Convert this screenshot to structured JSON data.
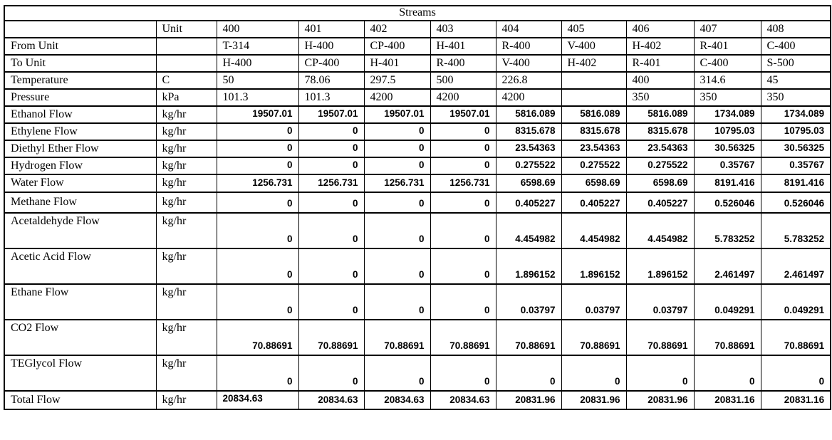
{
  "title": "Streams",
  "table": {
    "unit_header": "Unit",
    "streams": [
      "400",
      "401",
      "402",
      "403",
      "404",
      "405",
      "406",
      "407",
      "408"
    ],
    "rows": [
      {
        "label": "From Unit",
        "unit": "",
        "values": [
          "T-314",
          "H-400",
          "CP-400",
          "H-401",
          "R-400",
          "V-400",
          "H-402",
          "R-401",
          "C-400"
        ]
      },
      {
        "label": "To Unit",
        "unit": "",
        "values": [
          "H-400",
          "CP-400",
          "H-401",
          "R-400",
          "V-400",
          "H-402",
          "R-401",
          "C-400",
          "S-500"
        ]
      },
      {
        "label": "Temperature",
        "unit": "C",
        "values": [
          "50",
          "78.06",
          "297.5",
          "500",
          "226.8",
          "",
          "400",
          "314.6",
          "45"
        ]
      },
      {
        "label": "Pressure",
        "unit": "kPa",
        "values": [
          "101.3",
          "101.3",
          "4200",
          "4200",
          "4200",
          "",
          "350",
          "350",
          "350"
        ]
      },
      {
        "label": "Ethanol Flow",
        "unit": "kg/hr",
        "values": [
          "19507.01",
          "19507.01",
          "19507.01",
          "19507.01",
          "5816.089",
          "5816.089",
          "5816.089",
          "1734.089",
          "1734.089"
        ]
      },
      {
        "label": "Ethylene Flow",
        "unit": "kg/hr",
        "values": [
          "0",
          "0",
          "0",
          "0",
          "8315.678",
          "8315.678",
          "8315.678",
          "10795.03",
          "10795.03"
        ]
      },
      {
        "label": "Diethyl Ether Flow",
        "unit": "kg/hr",
        "values": [
          "0",
          "0",
          "0",
          "0",
          "23.54363",
          "23.54363",
          "23.54363",
          "30.56325",
          "30.56325"
        ]
      },
      {
        "label": "Hydrogen Flow",
        "unit": "kg/hr",
        "values": [
          "0",
          "0",
          "0",
          "0",
          "0.275522",
          "0.275522",
          "0.275522",
          "0.35767",
          "0.35767"
        ]
      },
      {
        "label": "Water Flow",
        "unit": "kg/hr",
        "values": [
          "1256.731",
          "1256.731",
          "1256.731",
          "1256.731",
          "6598.69",
          "6598.69",
          "6598.69",
          "8191.416",
          "8191.416"
        ]
      },
      {
        "label": "Methane Flow",
        "unit": "kg/hr",
        "values": [
          "0",
          "0",
          "0",
          "0",
          "0.405227",
          "0.405227",
          "0.405227",
          "0.526046",
          "0.526046"
        ]
      },
      {
        "label": "Acetaldehyde Flow",
        "unit": "kg/hr",
        "values": [
          "0",
          "0",
          "0",
          "0",
          "4.454982",
          "4.454982",
          "4.454982",
          "5.783252",
          "5.783252"
        ]
      },
      {
        "label": "Acetic Acid Flow",
        "unit": "kg/hr",
        "values": [
          "0",
          "0",
          "0",
          "0",
          "1.896152",
          "1.896152",
          "1.896152",
          "2.461497",
          "2.461497"
        ]
      },
      {
        "label": "Ethane Flow",
        "unit": "kg/hr",
        "values": [
          "0",
          "0",
          "0",
          "0",
          "0.03797",
          "0.03797",
          "0.03797",
          "0.049291",
          "0.049291"
        ]
      },
      {
        "label": "CO2 Flow",
        "unit": "kg/hr",
        "values": [
          "70.88691",
          "70.88691",
          "70.88691",
          "70.88691",
          "70.88691",
          "70.88691",
          "70.88691",
          "70.88691",
          "70.88691"
        ]
      },
      {
        "label": "TEGlycol Flow",
        "unit": "kg/hr",
        "values": [
          "0",
          "0",
          "0",
          "0",
          "0",
          "0",
          "0",
          "0",
          "0"
        ]
      },
      {
        "label": "Total Flow",
        "unit": "kg/hr",
        "values": [
          "20834.63",
          "20834.63",
          "20834.63",
          "20834.63",
          "20831.96",
          "20831.96",
          "20831.96",
          "20831.16",
          "20831.16"
        ]
      }
    ]
  }
}
